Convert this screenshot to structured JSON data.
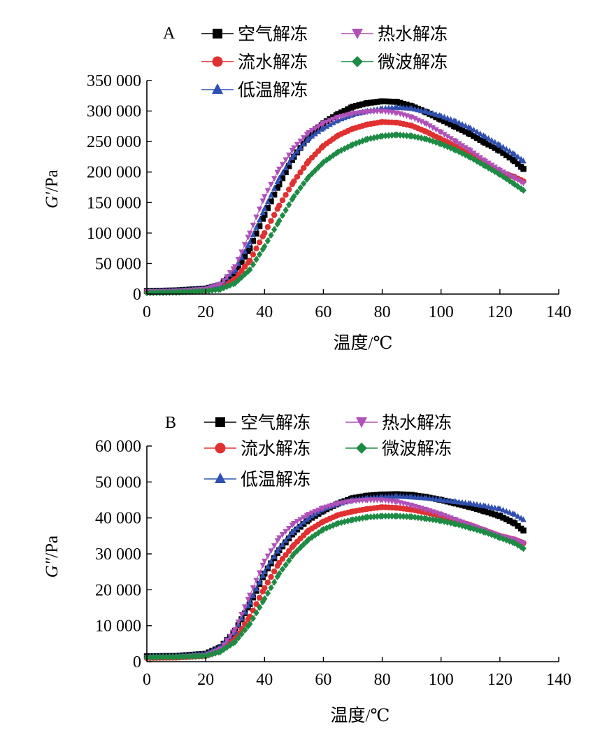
{
  "chart_data": [
    {
      "type": "scatter",
      "panel_label": "A",
      "xlabel": "温度/℃",
      "ylabel_symbol": "G′",
      "ylabel_unit": "/Pa",
      "xlim": [
        0,
        140
      ],
      "ylim": [
        0,
        350000
      ],
      "xticks": [
        0,
        20,
        40,
        60,
        80,
        100,
        120,
        140
      ],
      "xtick_labels": [
        "0",
        "20",
        "40",
        "60",
        "80",
        "100",
        "120",
        "140"
      ],
      "yticks": [
        0,
        50000,
        100000,
        150000,
        200000,
        250000,
        300000,
        350000
      ],
      "ytick_labels": [
        "0",
        "50 000",
        "100 000",
        "150 000",
        "200 000",
        "250 000",
        "300 000",
        "350 000"
      ],
      "legend_columns": [
        [
          "空气解冻",
          "流水解冻",
          "低温解冻"
        ],
        [
          "热水解冻",
          "微波解冻"
        ]
      ],
      "series": [
        {
          "name": "空气解冻",
          "color": "#000000",
          "marker": "square",
          "x": [
            0,
            10,
            20,
            25,
            30,
            35,
            40,
            45,
            50,
            55,
            60,
            65,
            70,
            75,
            80,
            85,
            90,
            95,
            100,
            105,
            110,
            115,
            120,
            125,
            128
          ],
          "y": [
            5000,
            6000,
            9000,
            15000,
            35000,
            75000,
            130000,
            180000,
            225000,
            258000,
            280000,
            295000,
            307000,
            313000,
            316000,
            315000,
            308000,
            298000,
            286000,
            274000,
            262000,
            248000,
            235000,
            218000,
            205000
          ]
        },
        {
          "name": "流水解冻",
          "color": "#e03030",
          "marker": "circle",
          "x": [
            0,
            10,
            20,
            25,
            30,
            35,
            40,
            45,
            50,
            55,
            60,
            65,
            70,
            75,
            80,
            85,
            90,
            95,
            100,
            105,
            110,
            115,
            120,
            125,
            128
          ],
          "y": [
            3000,
            4000,
            6000,
            10000,
            25000,
            55000,
            100000,
            145000,
            185000,
            218000,
            243000,
            260000,
            271000,
            278000,
            282000,
            281000,
            276000,
            266000,
            254000,
            242000,
            228000,
            214000,
            200000,
            192000,
            185000
          ]
        },
        {
          "name": "低温解冻",
          "color": "#3050b0",
          "marker": "triangle-up",
          "x": [
            0,
            10,
            20,
            25,
            30,
            35,
            40,
            45,
            50,
            55,
            60,
            65,
            70,
            75,
            80,
            85,
            90,
            95,
            100,
            105,
            110,
            115,
            120,
            125,
            128
          ],
          "y": [
            5000,
            6000,
            9000,
            16000,
            40000,
            85000,
            140000,
            190000,
            228000,
            255000,
            272000,
            285000,
            294000,
            300000,
            304000,
            306000,
            304000,
            299000,
            292000,
            283000,
            272000,
            258000,
            244000,
            229000,
            218000
          ]
        },
        {
          "name": "热水解冻",
          "color": "#b050b8",
          "marker": "triangle-down",
          "x": [
            0,
            10,
            20,
            25,
            30,
            35,
            40,
            45,
            50,
            55,
            60,
            65,
            70,
            75,
            80,
            85,
            90,
            95,
            100,
            105,
            110,
            115,
            120,
            125,
            128
          ],
          "y": [
            4000,
            5000,
            8000,
            16000,
            45000,
            100000,
            160000,
            205000,
            240000,
            265000,
            280000,
            290000,
            296000,
            299000,
            300000,
            297000,
            290000,
            279000,
            265000,
            250000,
            235000,
            218000,
            203000,
            190000,
            182000
          ]
        },
        {
          "name": "微波解冻",
          "color": "#1e8b45",
          "marker": "diamond",
          "x": [
            0,
            10,
            20,
            25,
            30,
            35,
            40,
            45,
            50,
            55,
            60,
            65,
            70,
            75,
            80,
            85,
            90,
            95,
            100,
            105,
            110,
            115,
            120,
            125,
            128
          ],
          "y": [
            2000,
            3000,
            5000,
            8000,
            18000,
            40000,
            78000,
            120000,
            160000,
            192000,
            216000,
            233000,
            245000,
            254000,
            259000,
            261000,
            259000,
            254000,
            246000,
            236000,
            224000,
            210000,
            196000,
            180000,
            170000
          ]
        }
      ]
    },
    {
      "type": "scatter",
      "panel_label": "B",
      "xlabel": "温度/℃",
      "ylabel_symbol": "G″",
      "ylabel_unit": "/Pa",
      "xlim": [
        0,
        140
      ],
      "ylim": [
        0,
        60000
      ],
      "xticks": [
        0,
        20,
        40,
        60,
        80,
        100,
        120,
        140
      ],
      "xtick_labels": [
        "0",
        "20",
        "40",
        "60",
        "80",
        "100",
        "120",
        "140"
      ],
      "yticks": [
        0,
        10000,
        20000,
        30000,
        40000,
        50000,
        60000
      ],
      "ytick_labels": [
        "0",
        "10 000",
        "20 000",
        "30 000",
        "40 000",
        "50 000",
        "60 000"
      ],
      "legend_columns": [
        [
          "空气解冻",
          "流水解冻",
          "低温解冻"
        ],
        [
          "热水解冻",
          "微波解冻"
        ]
      ],
      "series": [
        {
          "name": "空气解冻",
          "color": "#000000",
          "marker": "square",
          "x": [
            0,
            10,
            20,
            25,
            30,
            35,
            40,
            45,
            50,
            55,
            60,
            65,
            70,
            75,
            80,
            85,
            90,
            95,
            100,
            105,
            110,
            115,
            120,
            125,
            128
          ],
          "y": [
            1500,
            1600,
            2200,
            4000,
            8500,
            16000,
            24500,
            31000,
            36000,
            39500,
            42000,
            44000,
            45500,
            46200,
            46500,
            46600,
            46400,
            45800,
            45000,
            44000,
            43000,
            41800,
            40500,
            38500,
            36500
          ]
        },
        {
          "name": "流水解冻",
          "color": "#e03030",
          "marker": "circle",
          "x": [
            0,
            10,
            20,
            25,
            30,
            35,
            40,
            45,
            50,
            55,
            60,
            65,
            70,
            75,
            80,
            85,
            90,
            95,
            100,
            105,
            110,
            115,
            120,
            125,
            128
          ],
          "y": [
            1000,
            1100,
            1600,
            3000,
            6500,
            12500,
            20500,
            27500,
            32500,
            36500,
            39000,
            40800,
            41800,
            42500,
            43000,
            42800,
            42300,
            41500,
            40500,
            39300,
            38000,
            36500,
            35000,
            34000,
            33000
          ]
        },
        {
          "name": "低温解冻",
          "color": "#3050b0",
          "marker": "triangle-up",
          "x": [
            0,
            10,
            20,
            25,
            30,
            35,
            40,
            45,
            50,
            55,
            60,
            65,
            70,
            75,
            80,
            85,
            90,
            95,
            100,
            105,
            110,
            115,
            120,
            125,
            128
          ],
          "y": [
            1500,
            1600,
            2200,
            4000,
            8500,
            16500,
            25000,
            31500,
            36500,
            40000,
            42500,
            44000,
            45000,
            45500,
            45800,
            46000,
            45800,
            45500,
            45000,
            44500,
            44000,
            43300,
            42500,
            41000,
            39500
          ]
        },
        {
          "name": "热水解冻",
          "color": "#b050b8",
          "marker": "triangle-down",
          "x": [
            0,
            10,
            20,
            25,
            30,
            35,
            40,
            45,
            50,
            55,
            60,
            65,
            70,
            75,
            80,
            85,
            90,
            95,
            100,
            105,
            110,
            115,
            120,
            125,
            128
          ],
          "y": [
            1200,
            1300,
            1800,
            3500,
            9000,
            18500,
            28000,
            34500,
            38500,
            41000,
            42800,
            44000,
            44700,
            45000,
            45000,
            44500,
            43500,
            42300,
            41000,
            39500,
            38000,
            36500,
            35000,
            34000,
            33000
          ]
        },
        {
          "name": "微波解冻",
          "color": "#1e8b45",
          "marker": "diamond",
          "x": [
            0,
            10,
            20,
            25,
            30,
            35,
            40,
            45,
            50,
            55,
            60,
            65,
            70,
            75,
            80,
            85,
            90,
            95,
            100,
            105,
            110,
            115,
            120,
            125,
            128
          ],
          "y": [
            1200,
            1300,
            1600,
            2800,
            5500,
            10500,
            17500,
            24500,
            30000,
            34000,
            36800,
            38500,
            39500,
            40200,
            40500,
            40500,
            40300,
            39800,
            39200,
            38300,
            37200,
            36000,
            34500,
            33000,
            31500
          ]
        }
      ]
    }
  ]
}
